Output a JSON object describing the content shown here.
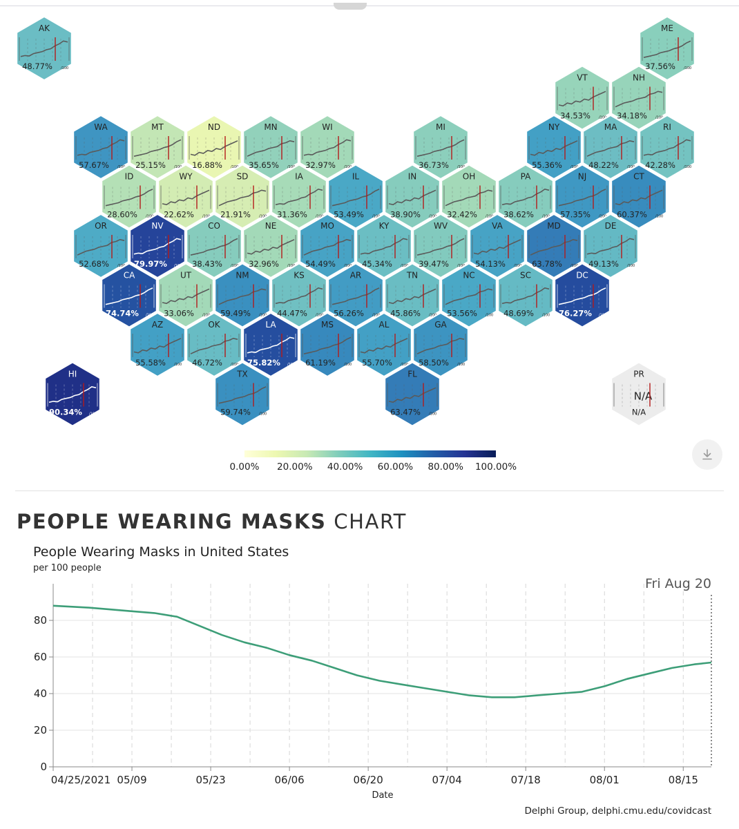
{
  "states": [
    {
      "abbr": "AK",
      "value": "48.77%",
      "unit": "/100",
      "col": 0,
      "row": 0,
      "color": "#6bbdc4",
      "text": "dark"
    },
    {
      "abbr": "ME",
      "value": "37.56%",
      "unit": "/100",
      "col": 11,
      "row": 0,
      "color": "#89cfbc",
      "text": "dark"
    },
    {
      "abbr": "VT",
      "value": "34.53%",
      "unit": "/100",
      "col": 9.5,
      "row": 1,
      "color": "#97d4ba",
      "text": "dark"
    },
    {
      "abbr": "NH",
      "value": "34.18%",
      "unit": "/100",
      "col": 10.5,
      "row": 1,
      "color": "#97d4ba",
      "text": "dark"
    },
    {
      "abbr": "WA",
      "value": "57.67%",
      "unit": "/100",
      "col": 1,
      "row": 2,
      "color": "#3f95c2",
      "text": "dark"
    },
    {
      "abbr": "MT",
      "value": "25.15%",
      "unit": "/100",
      "col": 2,
      "row": 2,
      "color": "#c3e6b5",
      "text": "dark"
    },
    {
      "abbr": "ND",
      "value": "16.88%",
      "unit": "/100",
      "col": 3,
      "row": 2,
      "color": "#e9f6b2",
      "text": "dark"
    },
    {
      "abbr": "MN",
      "value": "35.65%",
      "unit": "/100",
      "col": 4,
      "row": 2,
      "color": "#92d1bb",
      "text": "dark"
    },
    {
      "abbr": "WI",
      "value": "32.97%",
      "unit": "/100",
      "col": 5,
      "row": 2,
      "color": "#a3d9b8",
      "text": "dark"
    },
    {
      "abbr": "MI",
      "value": "36.73%",
      "unit": "/100",
      "col": 7,
      "row": 2,
      "color": "#8ccfbc",
      "text": "dark"
    },
    {
      "abbr": "NY",
      "value": "55.36%",
      "unit": "/100",
      "col": 9,
      "row": 2,
      "color": "#43a0c5",
      "text": "dark"
    },
    {
      "abbr": "MA",
      "value": "48.22%",
      "unit": "/100",
      "col": 10,
      "row": 2,
      "color": "#6dbdc3",
      "text": "dark"
    },
    {
      "abbr": "RI",
      "value": "42.28%",
      "unit": "/100",
      "col": 11,
      "row": 2,
      "color": "#74c3c1",
      "text": "dark"
    },
    {
      "abbr": "ID",
      "value": "28.60%",
      "unit": "/100",
      "col": 1.5,
      "row": 3,
      "color": "#b4e0b6",
      "text": "dark"
    },
    {
      "abbr": "WY",
      "value": "22.62%",
      "unit": "/100",
      "col": 2.5,
      "row": 3,
      "color": "#d3ecb3",
      "text": "dark"
    },
    {
      "abbr": "SD",
      "value": "21.91%",
      "unit": "/100",
      "col": 3.5,
      "row": 3,
      "color": "#d6edb3",
      "text": "dark"
    },
    {
      "abbr": "IA",
      "value": "31.36%",
      "unit": "/100",
      "col": 4.5,
      "row": 3,
      "color": "#a7dbb8",
      "text": "dark"
    },
    {
      "abbr": "IL",
      "value": "53.49%",
      "unit": "/100",
      "col": 5.5,
      "row": 3,
      "color": "#4aa8c6",
      "text": "dark"
    },
    {
      "abbr": "IN",
      "value": "38.90%",
      "unit": "/100",
      "col": 6.5,
      "row": 3,
      "color": "#86ccbd",
      "text": "dark"
    },
    {
      "abbr": "OH",
      "value": "32.42%",
      "unit": "/100",
      "col": 7.5,
      "row": 3,
      "color": "#a3d9b8",
      "text": "dark"
    },
    {
      "abbr": "PA",
      "value": "38.62%",
      "unit": "/100",
      "col": 8.5,
      "row": 3,
      "color": "#86ccbd",
      "text": "dark"
    },
    {
      "abbr": "NJ",
      "value": "57.35%",
      "unit": "/100",
      "col": 9.5,
      "row": 3,
      "color": "#3f98c3",
      "text": "dark"
    },
    {
      "abbr": "CT",
      "value": "60.37%",
      "unit": "/100",
      "col": 10.5,
      "row": 3,
      "color": "#388cbe",
      "text": "dark"
    },
    {
      "abbr": "OR",
      "value": "52.68%",
      "unit": "/100",
      "col": 1,
      "row": 4,
      "color": "#4eabc6",
      "text": "dark"
    },
    {
      "abbr": "NV",
      "value": "79.97%",
      "unit": "/100",
      "col": 2,
      "row": 4,
      "color": "#25449a",
      "text": "light"
    },
    {
      "abbr": "CO",
      "value": "38.43%",
      "unit": "/100",
      "col": 3,
      "row": 4,
      "color": "#86ccbd",
      "text": "dark"
    },
    {
      "abbr": "NE",
      "value": "32.96%",
      "unit": "/100",
      "col": 4,
      "row": 4,
      "color": "#a3d9b8",
      "text": "dark"
    },
    {
      "abbr": "MO",
      "value": "54.49%",
      "unit": "/100",
      "col": 5,
      "row": 4,
      "color": "#47a3c5",
      "text": "dark"
    },
    {
      "abbr": "KY",
      "value": "45.34%",
      "unit": "/100",
      "col": 6,
      "row": 4,
      "color": "#6bbec3",
      "text": "dark"
    },
    {
      "abbr": "WV",
      "value": "39.47%",
      "unit": "/100",
      "col": 7,
      "row": 4,
      "color": "#82cabe",
      "text": "dark"
    },
    {
      "abbr": "VA",
      "value": "54.13%",
      "unit": "/100",
      "col": 8,
      "row": 4,
      "color": "#47a3c5",
      "text": "dark"
    },
    {
      "abbr": "MD",
      "value": "63.78%",
      "unit": "/100",
      "col": 9,
      "row": 4,
      "color": "#347cb7",
      "text": "dark"
    },
    {
      "abbr": "DE",
      "value": "49.13%",
      "unit": "/100",
      "col": 10,
      "row": 4,
      "color": "#64b9c4",
      "text": "dark"
    },
    {
      "abbr": "CA",
      "value": "74.74%",
      "unit": "/100",
      "col": 1.5,
      "row": 5,
      "color": "#2552a1",
      "text": "light"
    },
    {
      "abbr": "UT",
      "value": "33.06%",
      "unit": "/100",
      "col": 2.5,
      "row": 5,
      "color": "#a3d9b8",
      "text": "dark"
    },
    {
      "abbr": "NM",
      "value": "59.49%",
      "unit": "/100",
      "col": 3.5,
      "row": 5,
      "color": "#3a90c0",
      "text": "dark"
    },
    {
      "abbr": "KS",
      "value": "44.47%",
      "unit": "/100",
      "col": 4.5,
      "row": 5,
      "color": "#70c0c2",
      "text": "dark"
    },
    {
      "abbr": "AR",
      "value": "56.26%",
      "unit": "/100",
      "col": 5.5,
      "row": 5,
      "color": "#429cc4",
      "text": "dark"
    },
    {
      "abbr": "TN",
      "value": "45.86%",
      "unit": "/100",
      "col": 6.5,
      "row": 5,
      "color": "#6abdc3",
      "text": "dark"
    },
    {
      "abbr": "NC",
      "value": "53.56%",
      "unit": "/100",
      "col": 7.5,
      "row": 5,
      "color": "#4aa8c6",
      "text": "dark"
    },
    {
      "abbr": "SC",
      "value": "48.69%",
      "unit": "/100",
      "col": 8.5,
      "row": 5,
      "color": "#65bac4",
      "text": "dark"
    },
    {
      "abbr": "DC",
      "value": "76.27%",
      "unit": "/100",
      "col": 9.5,
      "row": 5,
      "color": "#254c9e",
      "text": "light"
    },
    {
      "abbr": "AZ",
      "value": "55.58%",
      "unit": "/100",
      "col": 2,
      "row": 6,
      "color": "#43a0c5",
      "text": "dark"
    },
    {
      "abbr": "OK",
      "value": "46.72%",
      "unit": "/100",
      "col": 3,
      "row": 6,
      "color": "#68bcc4",
      "text": "dark"
    },
    {
      "abbr": "LA",
      "value": "75.82%",
      "unit": "/100",
      "col": 4,
      "row": 6,
      "color": "#254e9f",
      "text": "light"
    },
    {
      "abbr": "MS",
      "value": "61.19%",
      "unit": "/100",
      "col": 5,
      "row": 6,
      "color": "#3789bd",
      "text": "dark"
    },
    {
      "abbr": "AL",
      "value": "55.70%",
      "unit": "/100",
      "col": 6,
      "row": 6,
      "color": "#43a0c5",
      "text": "dark"
    },
    {
      "abbr": "GA",
      "value": "58.50%",
      "unit": "/100",
      "col": 7,
      "row": 6,
      "color": "#3d94c1",
      "text": "dark"
    },
    {
      "abbr": "HI",
      "value": "90.34%",
      "unit": "/100",
      "col": 0.5,
      "row": 7,
      "color": "#203087",
      "text": "light"
    },
    {
      "abbr": "TX",
      "value": "59.74%",
      "unit": "/100",
      "col": 3.5,
      "row": 7,
      "color": "#3a90c0",
      "text": "dark"
    },
    {
      "abbr": "FL",
      "value": "63.47%",
      "unit": "/100",
      "col": 6.5,
      "row": 7,
      "color": "#347cb7",
      "text": "dark"
    },
    {
      "abbr": "PR",
      "value": "N/A",
      "unit": "",
      "col": 10.5,
      "row": 7,
      "color": "#ececec",
      "text": "dark",
      "na": true,
      "center_text": "N/A"
    }
  ],
  "legend": {
    "ticks": [
      "0.00%",
      "20.00%",
      "40.00%",
      "60.00%",
      "80.00%",
      "100.00%"
    ],
    "colors": [
      "#ffffd9",
      "#edf8b1",
      "#c7e9b4",
      "#7fcdbb",
      "#41b6c4",
      "#1d91c0",
      "#225ea8",
      "#253494",
      "#081d58"
    ]
  },
  "section": {
    "title_bold": "PEOPLE WEARING MASKS",
    "title_rest": " CHART"
  },
  "chart_data": {
    "type": "line",
    "title": "People Wearing Masks in United States",
    "subtitle": "per 100 people",
    "xlabel": "Date",
    "ylabel": "",
    "ylim": [
      0,
      100
    ],
    "yticks": [
      0,
      20,
      40,
      60,
      80
    ],
    "xticks": [
      "04/25/2021",
      "05/09",
      "05/23",
      "06/06",
      "06/20",
      "07/04",
      "07/18",
      "08/01",
      "08/15"
    ],
    "hover_label": "Fri Aug 20",
    "series": [
      {
        "color": "#3d9e78",
        "x": [
          "2021-04-25",
          "2021-05-01",
          "2021-05-05",
          "2021-05-09",
          "2021-05-13",
          "2021-05-17",
          "2021-05-21",
          "2021-05-25",
          "2021-05-29",
          "2021-06-02",
          "2021-06-06",
          "2021-06-10",
          "2021-06-14",
          "2021-06-18",
          "2021-06-22",
          "2021-06-26",
          "2021-06-30",
          "2021-07-04",
          "2021-07-08",
          "2021-07-12",
          "2021-07-16",
          "2021-07-20",
          "2021-07-24",
          "2021-07-28",
          "2021-08-01",
          "2021-08-05",
          "2021-08-09",
          "2021-08-13",
          "2021-08-17",
          "2021-08-20"
        ],
        "values": [
          88,
          87,
          86,
          85,
          84,
          82,
          77,
          72,
          68,
          65,
          61,
          58,
          54,
          50,
          47,
          45,
          43,
          41,
          39,
          38,
          38,
          39,
          40,
          41,
          44,
          48,
          51,
          54,
          56,
          57
        ]
      }
    ]
  },
  "source": "Delphi Group, delphi.cmu.edu/covidcast",
  "download_icon": "download-icon"
}
